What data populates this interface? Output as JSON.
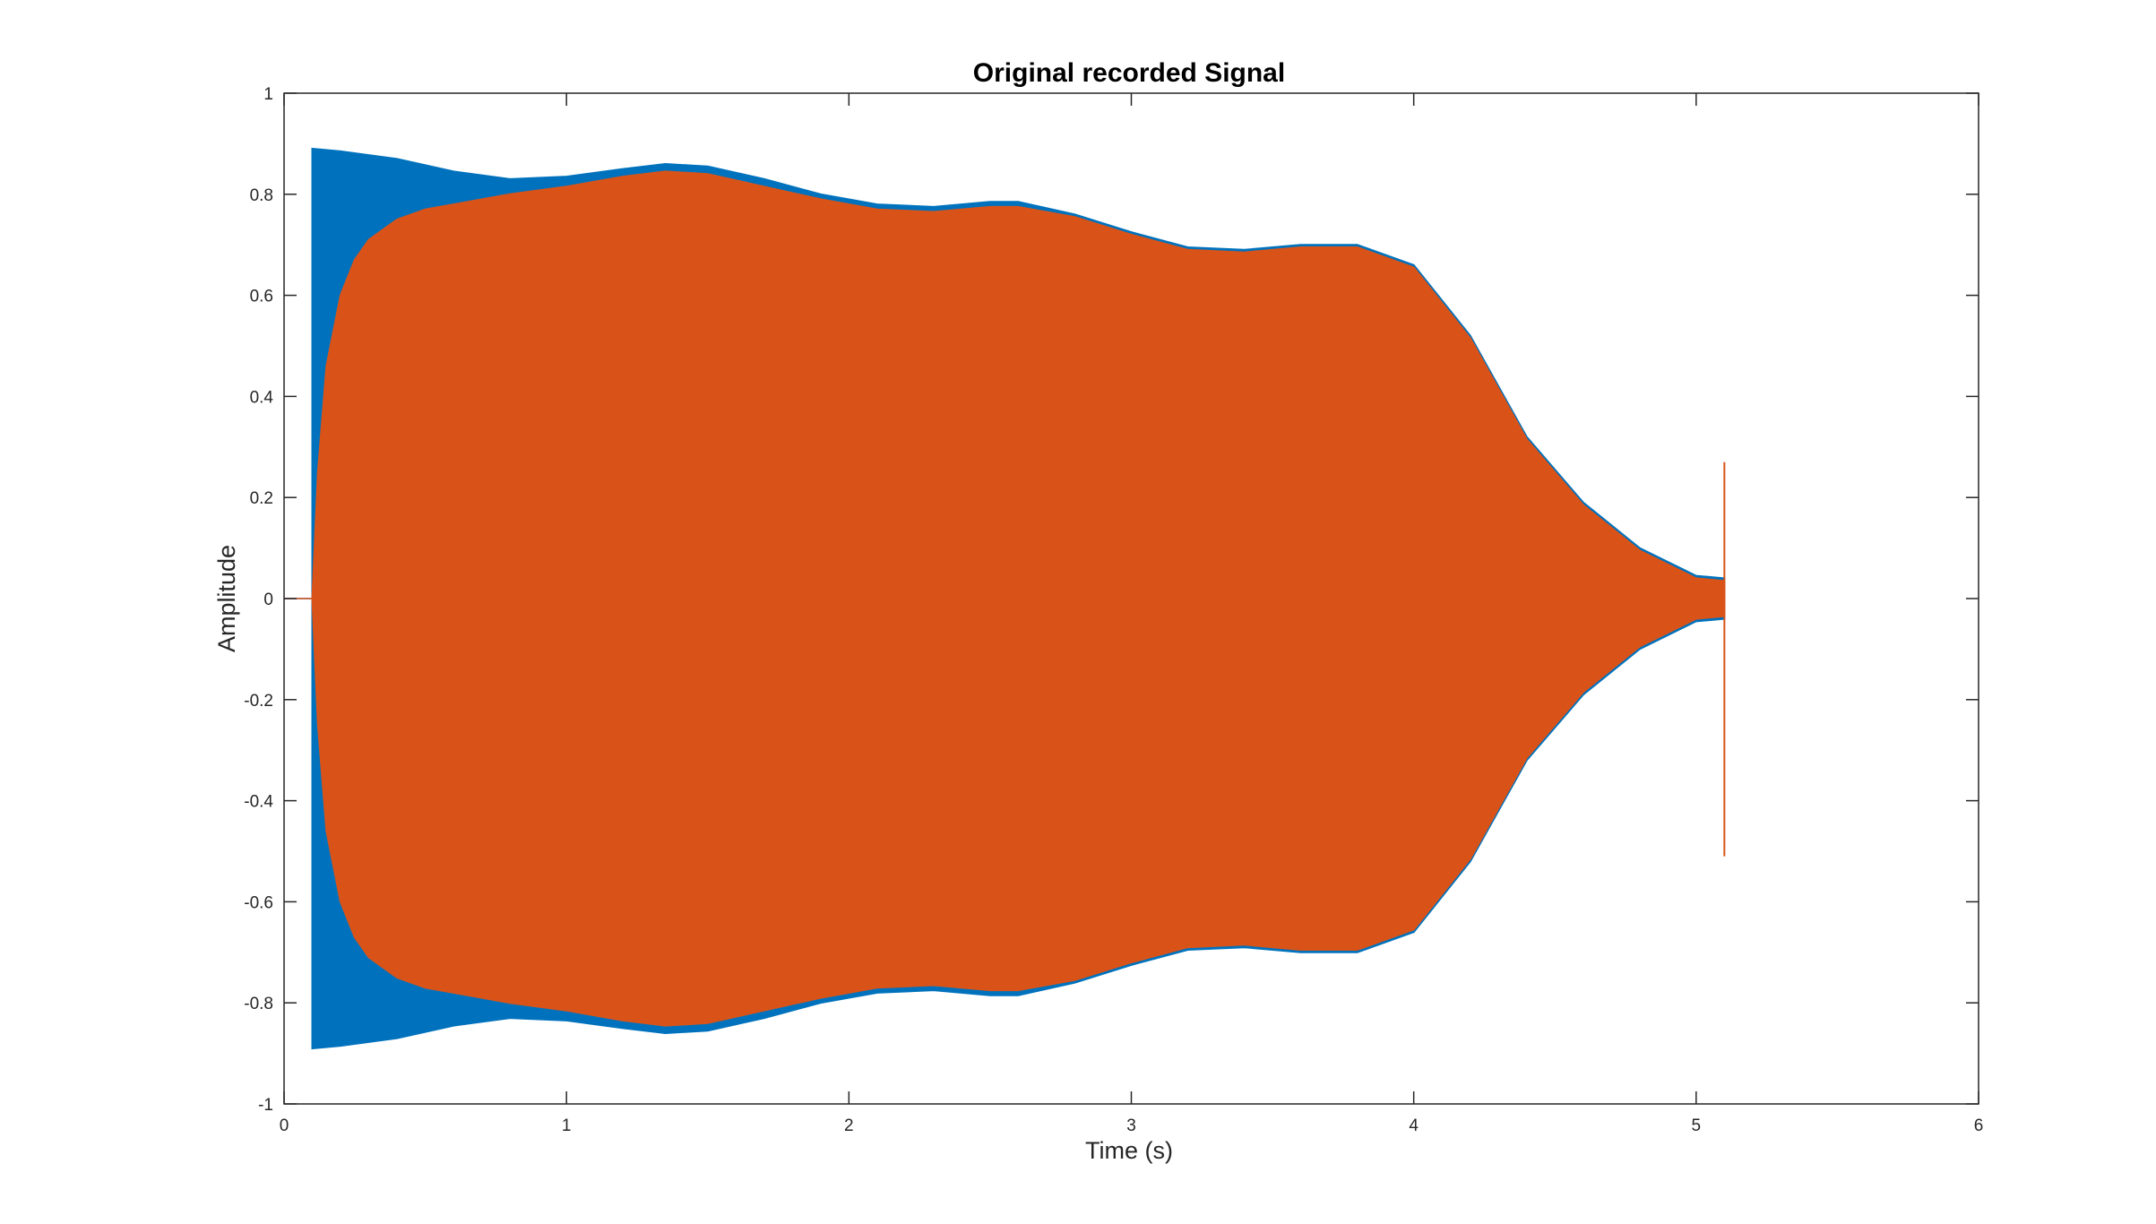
{
  "chart_data": {
    "type": "area",
    "title": "Original recorded Signal",
    "xlabel": "Time (s)",
    "ylabel": "Amplitude",
    "xlim": [
      0,
      6
    ],
    "ylim": [
      -1,
      1
    ],
    "xticks": [
      "0",
      "1",
      "2",
      "3",
      "4",
      "5",
      "6"
    ],
    "yticks": [
      "-1",
      "-0.8",
      "-0.6",
      "-0.4",
      "-0.2",
      "0",
      "0.2",
      "0.4",
      "0.6",
      "0.8",
      "1"
    ],
    "grid": false,
    "legend": "none",
    "series": [
      {
        "color": "#0072BD",
        "envelope": {
          "x": [
            0.1,
            0.1,
            0.2,
            0.4,
            0.6,
            0.8,
            1.0,
            1.2,
            1.35,
            1.5,
            1.7,
            1.9,
            2.1,
            2.3,
            2.5,
            2.6,
            2.8,
            3.0,
            3.2,
            3.4,
            3.6,
            3.8,
            4.0,
            4.2,
            4.4,
            4.6,
            4.8,
            5.0,
            5.1,
            5.1
          ],
          "upper": [
            0,
            0.89,
            0.885,
            0.87,
            0.845,
            0.83,
            0.835,
            0.85,
            0.86,
            0.855,
            0.83,
            0.8,
            0.78,
            0.775,
            0.785,
            0.785,
            0.76,
            0.725,
            0.695,
            0.69,
            0.7,
            0.7,
            0.66,
            0.52,
            0.32,
            0.19,
            0.1,
            0.045,
            0.04,
            0
          ],
          "lower": [
            0,
            -0.89,
            -0.885,
            -0.87,
            -0.845,
            -0.83,
            -0.835,
            -0.85,
            -0.86,
            -0.855,
            -0.83,
            -0.8,
            -0.78,
            -0.775,
            -0.785,
            -0.785,
            -0.76,
            -0.725,
            -0.695,
            -0.69,
            -0.7,
            -0.7,
            -0.66,
            -0.52,
            -0.32,
            -0.19,
            -0.1,
            -0.045,
            -0.04,
            0
          ]
        }
      },
      {
        "color": "#D95319",
        "envelope": {
          "x": [
            0.1,
            0.12,
            0.15,
            0.2,
            0.25,
            0.3,
            0.4,
            0.5,
            0.6,
            0.8,
            1.0,
            1.2,
            1.35,
            1.5,
            1.7,
            1.9,
            2.1,
            2.3,
            2.5,
            2.6,
            2.8,
            3.0,
            3.2,
            3.4,
            3.6,
            3.8,
            4.0,
            4.2,
            4.4,
            4.6,
            4.8,
            5.0,
            5.1,
            5.1
          ],
          "upper": [
            0,
            0.25,
            0.46,
            0.6,
            0.67,
            0.71,
            0.75,
            0.77,
            0.78,
            0.8,
            0.815,
            0.835,
            0.845,
            0.84,
            0.815,
            0.79,
            0.77,
            0.765,
            0.775,
            0.775,
            0.755,
            0.72,
            0.69,
            0.685,
            0.695,
            0.695,
            0.655,
            0.515,
            0.315,
            0.185,
            0.095,
            0.04,
            0.035,
            0
          ],
          "lower": [
            0,
            -0.25,
            -0.46,
            -0.6,
            -0.67,
            -0.71,
            -0.75,
            -0.77,
            -0.78,
            -0.8,
            -0.815,
            -0.835,
            -0.845,
            -0.84,
            -0.815,
            -0.79,
            -0.77,
            -0.765,
            -0.775,
            -0.775,
            -0.755,
            -0.72,
            -0.69,
            -0.685,
            -0.695,
            -0.695,
            -0.655,
            -0.515,
            -0.315,
            -0.185,
            -0.095,
            -0.04,
            -0.035,
            0
          ]
        }
      }
    ],
    "spikes": [
      {
        "x": 5.1,
        "ymin": -0.51,
        "ymax": 0.27
      }
    ]
  }
}
